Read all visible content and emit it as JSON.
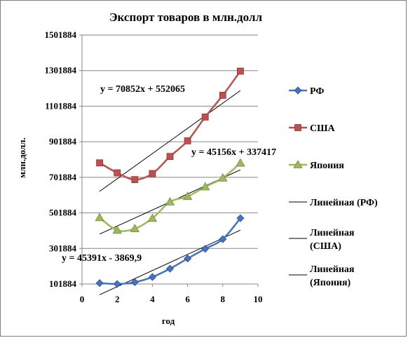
{
  "chart_data": {
    "type": "line",
    "title": "Экспорт товаров в млн.долл",
    "xlabel": "год",
    "ylabel": "млн.долл.",
    "xlim": [
      0,
      10
    ],
    "ylim": [
      101884,
      1501884
    ],
    "x_ticks": [
      0,
      2,
      4,
      6,
      8,
      10
    ],
    "y_ticks": [
      101884,
      301884,
      501884,
      701884,
      901884,
      1101884,
      1301884,
      1501884
    ],
    "grid": true,
    "legend_position": "right",
    "x": [
      1,
      2,
      3,
      4,
      5,
      6,
      7,
      8,
      9
    ],
    "series": [
      {
        "name": "РФ",
        "color": "#4472c4",
        "marker": "diamond",
        "values": [
          107000,
          102000,
          112000,
          141000,
          188000,
          245000,
          300000,
          354000,
          472000
        ]
      },
      {
        "name": "США",
        "color": "#c0504d",
        "marker": "square",
        "values": [
          783000,
          727000,
          689000,
          723000,
          819000,
          907000,
          1041000,
          1163000,
          1299000
        ]
      },
      {
        "name": "Япония",
        "color": "#9bbb59",
        "marker": "triangle",
        "values": [
          475000,
          404000,
          413000,
          471000,
          564000,
          594000,
          648000,
          698000,
          782000
        ]
      }
    ],
    "trendlines": [
      {
        "name": "Линейная (РФ)",
        "slope": 45391,
        "intercept": -3869.9,
        "equation": "y = 45391x - 3869,9",
        "color": "#000000"
      },
      {
        "name": "Линейная (США)",
        "slope": 70852,
        "intercept": 552065,
        "equation": "y = 70852x + 552065",
        "color": "#000000"
      },
      {
        "name": "Линейная (Япония)",
        "slope": 45156,
        "intercept": 337417,
        "equation": "y = 45156x + 337417",
        "color": "#000000"
      }
    ]
  }
}
